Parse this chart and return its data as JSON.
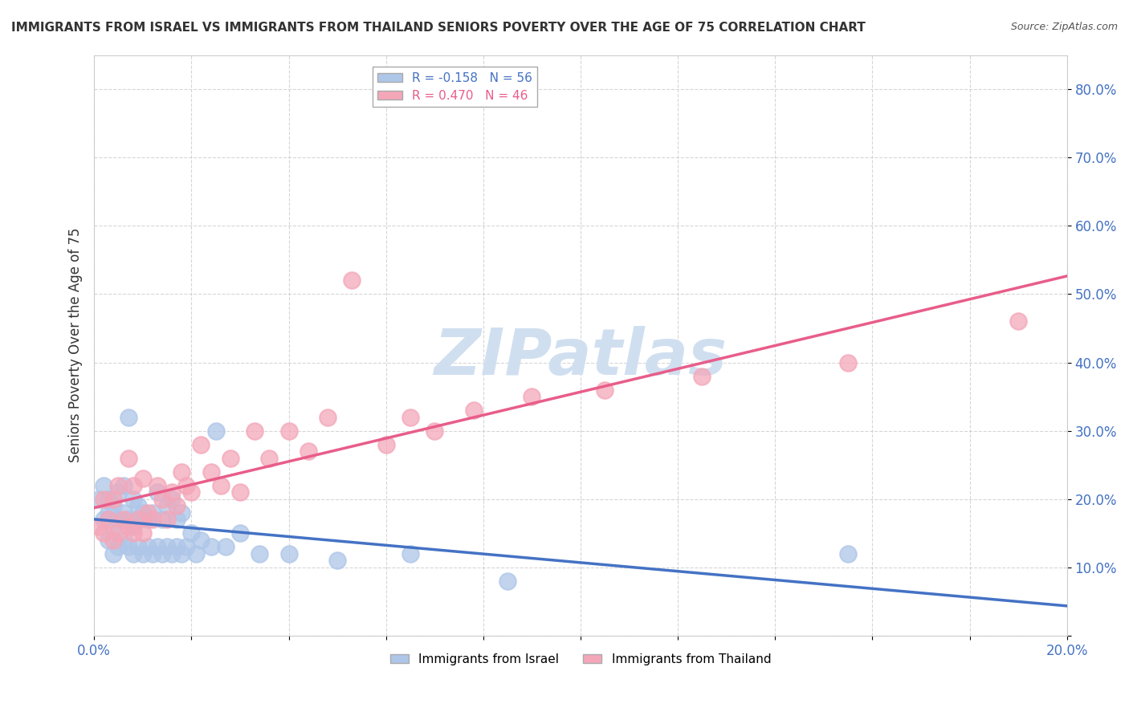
{
  "title": "IMMIGRANTS FROM ISRAEL VS IMMIGRANTS FROM THAILAND SENIORS POVERTY OVER THE AGE OF 75 CORRELATION CHART",
  "source": "Source: ZipAtlas.com",
  "ylabel": "Seniors Poverty Over the Age of 75",
  "xlim": [
    0.0,
    0.2
  ],
  "ylim": [
    0.0,
    0.85
  ],
  "israel_R": -0.158,
  "israel_N": 56,
  "thailand_R": 0.47,
  "thailand_N": 46,
  "israel_color": "#aec6e8",
  "thailand_color": "#f4a7b9",
  "israel_line_color": "#4472c4",
  "thailand_line_color": "#e85d8a",
  "watermark_color": "#d0dff0",
  "background_color": "#ffffff",
  "israel_x": [
    0.001,
    0.002,
    0.002,
    0.003,
    0.003,
    0.003,
    0.004,
    0.004,
    0.004,
    0.005,
    0.005,
    0.005,
    0.006,
    0.006,
    0.006,
    0.007,
    0.007,
    0.007,
    0.008,
    0.008,
    0.008,
    0.009,
    0.009,
    0.009,
    0.01,
    0.01,
    0.011,
    0.011,
    0.012,
    0.012,
    0.013,
    0.013,
    0.014,
    0.014,
    0.015,
    0.015,
    0.016,
    0.016,
    0.017,
    0.017,
    0.018,
    0.018,
    0.019,
    0.02,
    0.021,
    0.022,
    0.024,
    0.025,
    0.027,
    0.03,
    0.034,
    0.04,
    0.05,
    0.065,
    0.085,
    0.155
  ],
  "israel_y": [
    0.2,
    0.17,
    0.22,
    0.14,
    0.18,
    0.2,
    0.12,
    0.16,
    0.19,
    0.13,
    0.17,
    0.21,
    0.14,
    0.18,
    0.22,
    0.13,
    0.17,
    0.32,
    0.12,
    0.16,
    0.2,
    0.13,
    0.17,
    0.19,
    0.12,
    0.18,
    0.13,
    0.17,
    0.12,
    0.18,
    0.13,
    0.21,
    0.12,
    0.17,
    0.13,
    0.19,
    0.12,
    0.2,
    0.13,
    0.17,
    0.12,
    0.18,
    0.13,
    0.15,
    0.12,
    0.14,
    0.13,
    0.3,
    0.13,
    0.15,
    0.12,
    0.12,
    0.11,
    0.12,
    0.08,
    0.12
  ],
  "thailand_x": [
    0.001,
    0.002,
    0.002,
    0.003,
    0.004,
    0.004,
    0.005,
    0.005,
    0.006,
    0.007,
    0.007,
    0.008,
    0.008,
    0.009,
    0.01,
    0.01,
    0.011,
    0.012,
    0.013,
    0.014,
    0.015,
    0.016,
    0.017,
    0.018,
    0.019,
    0.02,
    0.022,
    0.024,
    0.026,
    0.028,
    0.03,
    0.033,
    0.036,
    0.04,
    0.044,
    0.048,
    0.053,
    0.06,
    0.065,
    0.07,
    0.078,
    0.09,
    0.105,
    0.125,
    0.155,
    0.19
  ],
  "thailand_y": [
    0.16,
    0.15,
    0.2,
    0.17,
    0.14,
    0.2,
    0.15,
    0.22,
    0.17,
    0.16,
    0.26,
    0.15,
    0.22,
    0.17,
    0.15,
    0.23,
    0.18,
    0.17,
    0.22,
    0.2,
    0.17,
    0.21,
    0.19,
    0.24,
    0.22,
    0.21,
    0.28,
    0.24,
    0.22,
    0.26,
    0.21,
    0.3,
    0.26,
    0.3,
    0.27,
    0.32,
    0.52,
    0.28,
    0.32,
    0.3,
    0.33,
    0.35,
    0.36,
    0.38,
    0.4,
    0.46
  ]
}
